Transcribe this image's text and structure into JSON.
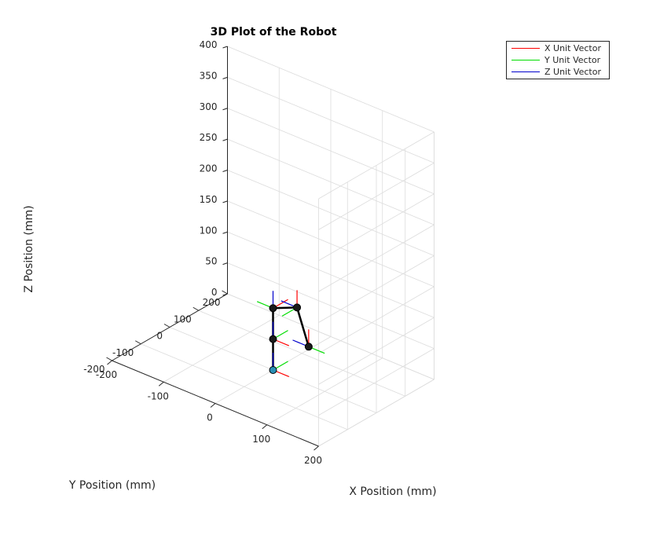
{
  "colors": {
    "x_unit": "#ff0000",
    "y_unit": "#00dd00",
    "z_unit": "#0000cc",
    "link": "#000000",
    "joint_fill": "#1a1a1a",
    "base_fill": "#2a8fb5",
    "grid": "#dcdcdc",
    "axis": "#262626"
  },
  "chart_data": {
    "type": "3d-line",
    "title": "3D Plot of the Robot",
    "xlabel": "X Position (mm)",
    "ylabel": "Y Position (mm)",
    "zlabel": "Z Position (mm)",
    "xlim": [
      -200,
      200
    ],
    "ylim": [
      -200,
      200
    ],
    "zlim": [
      0,
      400
    ],
    "xticks": [
      -200,
      -100,
      0,
      100,
      200
    ],
    "yticks": [
      -200,
      -100,
      0,
      100,
      200
    ],
    "zticks": [
      0,
      50,
      100,
      150,
      200,
      250,
      300,
      350,
      400
    ],
    "grid": true,
    "view": "default 3-D view (azimuth -37.5, elevation 30)",
    "legend_placement": "top-right outside",
    "legend": [
      "X Unit Vector",
      "Y Unit Vector",
      "Z Unit Vector"
    ],
    "joints": [
      {
        "x": 0,
        "y": 0,
        "z": 0
      },
      {
        "x": 0,
        "y": 0,
        "z": 50
      },
      {
        "x": 0,
        "y": 0,
        "z": 100
      },
      {
        "x": 80,
        "y": -60,
        "z": 145
      },
      {
        "x": 55,
        "y": 25,
        "z": 50
      }
    ]
  }
}
